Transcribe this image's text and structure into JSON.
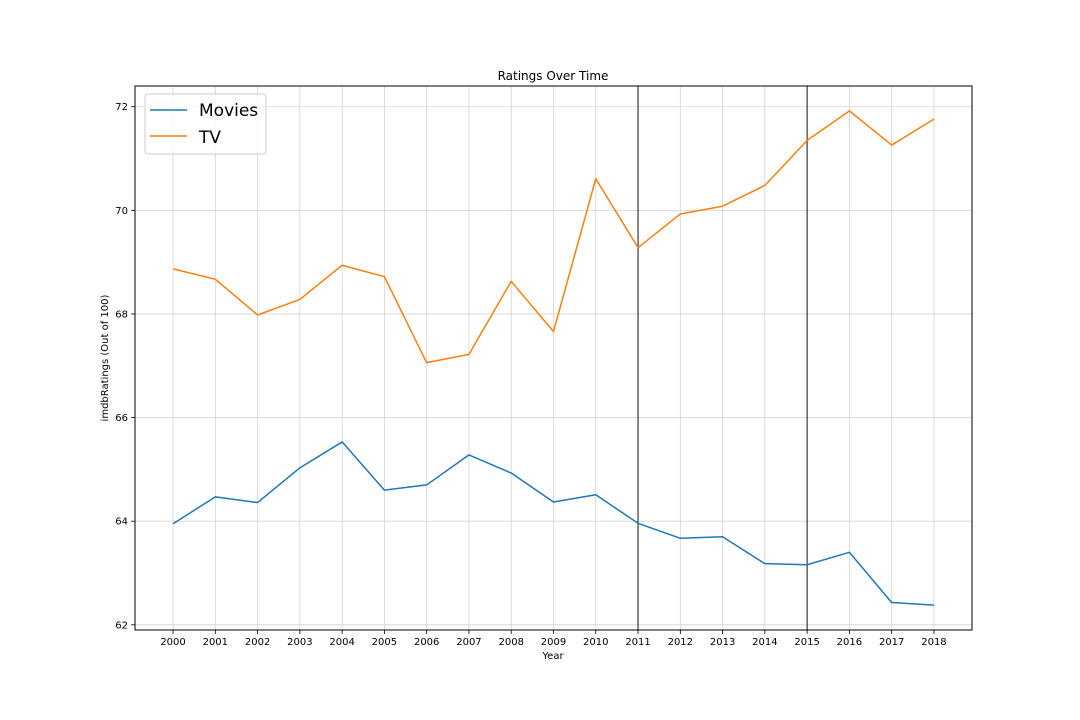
{
  "chart_data": {
    "type": "line",
    "title": "Ratings Over Time",
    "xlabel": "Year",
    "ylabel": "imdbRatings (Out of 100)",
    "x": [
      2000,
      2001,
      2002,
      2003,
      2004,
      2005,
      2006,
      2007,
      2008,
      2009,
      2010,
      2011,
      2012,
      2013,
      2014,
      2015,
      2016,
      2017,
      2018
    ],
    "xlim": [
      1999.1,
      2018.9
    ],
    "ylim": [
      61.9,
      72.4
    ],
    "yticks": [
      62,
      64,
      66,
      68,
      70,
      72
    ],
    "grid": true,
    "legend_position": "top-left",
    "vertical_lines": [
      2011,
      2015
    ],
    "series": [
      {
        "name": "Movies",
        "color": "#1f77b4",
        "values": [
          63.95,
          64.47,
          64.36,
          65.03,
          65.53,
          64.6,
          64.7,
          65.28,
          64.93,
          64.37,
          64.51,
          63.96,
          63.67,
          63.7,
          63.18,
          63.16,
          63.4,
          62.43,
          62.38
        ]
      },
      {
        "name": "TV",
        "color": "#ff7f0e",
        "values": [
          68.87,
          68.67,
          67.98,
          68.28,
          68.94,
          68.72,
          67.06,
          67.22,
          68.63,
          67.66,
          70.61,
          69.28,
          69.93,
          70.08,
          70.48,
          71.35,
          71.92,
          71.26,
          71.76
        ]
      }
    ]
  }
}
